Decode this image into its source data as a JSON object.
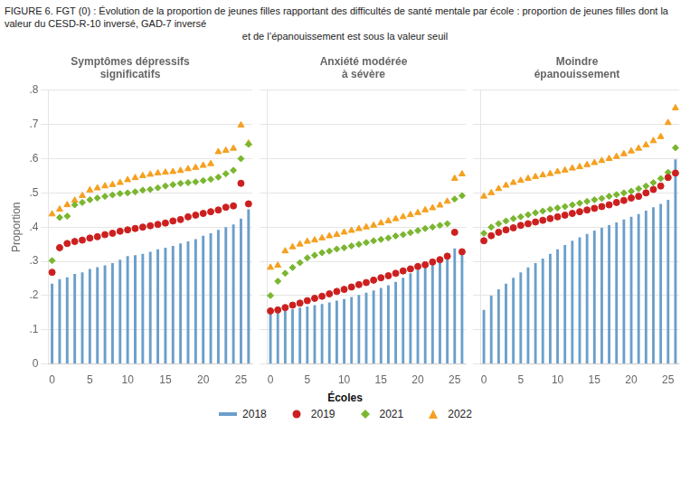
{
  "title": "FIGURE 6. FGT (0) : Évolution de la proportion de jeunes filles rapportant des difficultés de santé mentale par école : proportion de jeunes filles dont la valeur du CESD-R-10 inversé, GAD-7 inversé\net de l’épanouissement est sous la valeur seuil",
  "xlabel": "Écoles",
  "legend": "bottom",
  "chart_data": [
    {
      "type": "bar",
      "title": "Symptômes dépressifs\nsignificatifs",
      "ylabel": "Proportion",
      "categories": [
        "0",
        null,
        null,
        null,
        null,
        "5",
        null,
        null,
        null,
        null,
        "10",
        null,
        null,
        null,
        null,
        "15",
        null,
        null,
        null,
        null,
        "20",
        null,
        null,
        null,
        null,
        "25",
        null
      ],
      "ylim": [
        0,
        0.8
      ],
      "yticks": [
        0,
        {
          "value": 0.1,
          "label": ".1"
        },
        {
          "value": 0.2,
          "label": ".2"
        },
        {
          "value": 0.3,
          "label": ".3"
        },
        {
          "value": 0.4,
          "label": ".4"
        },
        {
          "value": 0.5,
          "label": ".5"
        },
        {
          "value": 0.6,
          "label": ".6"
        },
        {
          "value": 0.7,
          "label": ".7"
        },
        {
          "value": 0.8,
          "label": ".8"
        }
      ],
      "grid": true,
      "series": [
        {
          "name": "2018",
          "type": "bar",
          "color": "#6b9fcb",
          "values": [
            0.235,
            0.248,
            0.253,
            0.263,
            0.268,
            0.278,
            0.283,
            0.288,
            0.295,
            0.305,
            0.315,
            0.318,
            0.322,
            0.328,
            0.335,
            0.34,
            0.345,
            0.352,
            0.358,
            0.365,
            0.375,
            0.382,
            0.392,
            0.4,
            0.408,
            0.425,
            0.452
          ]
        },
        {
          "name": "2019",
          "type": "scatter",
          "marker": "circle",
          "color": "#cc2020",
          "values": [
            0.268,
            0.34,
            0.352,
            0.358,
            0.362,
            0.368,
            0.372,
            0.378,
            0.382,
            0.388,
            0.392,
            0.396,
            0.4,
            0.404,
            0.408,
            0.412,
            0.418,
            0.422,
            0.43,
            0.435,
            0.44,
            0.445,
            0.45,
            0.458,
            0.462,
            0.528,
            0.468
          ]
        },
        {
          "name": "2021",
          "type": "scatter",
          "marker": "diamond",
          "color": "#7ab630",
          "values": [
            0.302,
            0.428,
            0.432,
            0.465,
            0.472,
            0.48,
            0.485,
            0.49,
            0.494,
            0.498,
            0.5,
            0.503,
            0.508,
            0.51,
            0.515,
            0.52,
            0.524,
            0.528,
            0.53,
            0.532,
            0.536,
            0.54,
            0.546,
            0.556,
            0.566,
            0.6,
            0.642
          ]
        },
        {
          "name": "2022",
          "type": "scatter",
          "marker": "triangle",
          "color": "#f5a020",
          "values": [
            0.438,
            0.452,
            0.465,
            0.478,
            0.492,
            0.508,
            0.514,
            0.52,
            0.524,
            0.53,
            0.538,
            0.544,
            0.55,
            0.554,
            0.558,
            0.56,
            0.562,
            0.565,
            0.57,
            0.574,
            0.58,
            0.585,
            0.62,
            0.624,
            0.63,
            0.698,
            0.645
          ]
        }
      ]
    },
    {
      "type": "bar",
      "title": "Anxiété modérée\nà sévère",
      "categories": [
        "0",
        null,
        null,
        null,
        null,
        "5",
        null,
        null,
        null,
        null,
        "10",
        null,
        null,
        null,
        null,
        "15",
        null,
        null,
        null,
        null,
        "20",
        null,
        null,
        null,
        null,
        "25",
        null
      ],
      "ylim": [
        0,
        0.8
      ],
      "yticks": [
        0,
        {
          "value": 0.1,
          "label": ".1"
        },
        {
          "value": 0.2,
          "label": ".2"
        },
        {
          "value": 0.3,
          "label": ".3"
        },
        {
          "value": 0.4,
          "label": ".4"
        },
        {
          "value": 0.5,
          "label": ".5"
        },
        {
          "value": 0.6,
          "label": ".6"
        },
        {
          "value": 0.7,
          "label": ".7"
        },
        {
          "value": 0.8,
          "label": ".8"
        }
      ],
      "grid": true,
      "tick_labels": "x",
      "series": [
        {
          "name": "2018",
          "type": "bar",
          "color": "#6b9fcb",
          "values": [
            0.148,
            0.152,
            0.156,
            0.16,
            0.165,
            0.168,
            0.172,
            0.175,
            0.18,
            0.185,
            0.19,
            0.196,
            0.202,
            0.208,
            0.215,
            0.222,
            0.23,
            0.24,
            0.252,
            0.265,
            0.275,
            0.285,
            0.298,
            0.308,
            0.322,
            0.338,
            0.332
          ]
        },
        {
          "name": "2019",
          "type": "scatter",
          "marker": "circle",
          "color": "#cc2020",
          "values": [
            0.155,
            0.158,
            0.165,
            0.172,
            0.178,
            0.185,
            0.192,
            0.198,
            0.205,
            0.212,
            0.218,
            0.225,
            0.232,
            0.238,
            0.245,
            0.252,
            0.258,
            0.265,
            0.272,
            0.278,
            0.285,
            0.29,
            0.298,
            0.305,
            0.315,
            0.385,
            0.328
          ]
        },
        {
          "name": "2021",
          "type": "scatter",
          "marker": "diamond",
          "color": "#7ab630",
          "values": [
            0.2,
            0.242,
            0.265,
            0.282,
            0.296,
            0.31,
            0.318,
            0.325,
            0.33,
            0.336,
            0.34,
            0.345,
            0.35,
            0.355,
            0.36,
            0.364,
            0.368,
            0.374,
            0.378,
            0.384,
            0.39,
            0.396,
            0.4,
            0.405,
            0.41,
            0.482,
            0.492
          ]
        },
        {
          "name": "2022",
          "type": "scatter",
          "marker": "triangle",
          "color": "#f5a020",
          "values": [
            0.282,
            0.288,
            0.33,
            0.342,
            0.35,
            0.358,
            0.362,
            0.368,
            0.374,
            0.378,
            0.385,
            0.39,
            0.395,
            0.4,
            0.405,
            0.412,
            0.418,
            0.424,
            0.43,
            0.436,
            0.442,
            0.45,
            0.456,
            0.464,
            0.475,
            0.542,
            0.555
          ]
        }
      ]
    },
    {
      "type": "bar",
      "title": "Moindre\népanouissement",
      "categories": [
        "0",
        null,
        null,
        null,
        null,
        "5",
        null,
        null,
        null,
        null,
        "10",
        null,
        null,
        null,
        null,
        "15",
        null,
        null,
        null,
        null,
        "20",
        null,
        null,
        null,
        null,
        "25",
        null
      ],
      "ylim": [
        0,
        0.8
      ],
      "yticks": [
        0,
        {
          "value": 0.1,
          "label": ".1"
        },
        {
          "value": 0.2,
          "label": ".2"
        },
        {
          "value": 0.3,
          "label": ".3"
        },
        {
          "value": 0.4,
          "label": ".4"
        },
        {
          "value": 0.5,
          "label": ".5"
        },
        {
          "value": 0.6,
          "label": ".6"
        },
        {
          "value": 0.7,
          "label": ".7"
        },
        {
          "value": 0.8,
          "label": ".8"
        }
      ],
      "grid": true,
      "tick_labels": "x",
      "series": [
        {
          "name": "2018",
          "type": "bar",
          "color": "#6b9fcb",
          "values": [
            0.158,
            0.2,
            0.218,
            0.235,
            0.252,
            0.268,
            0.282,
            0.295,
            0.308,
            0.322,
            0.335,
            0.348,
            0.36,
            0.37,
            0.38,
            0.39,
            0.398,
            0.406,
            0.414,
            0.422,
            0.43,
            0.438,
            0.448,
            0.458,
            0.468,
            0.48,
            0.598
          ]
        },
        {
          "name": "2019",
          "type": "scatter",
          "marker": "circle",
          "color": "#cc2020",
          "values": [
            0.36,
            0.375,
            0.385,
            0.392,
            0.398,
            0.405,
            0.41,
            0.415,
            0.42,
            0.425,
            0.43,
            0.435,
            0.44,
            0.445,
            0.45,
            0.455,
            0.46,
            0.465,
            0.472,
            0.478,
            0.485,
            0.49,
            0.5,
            0.51,
            0.52,
            0.545,
            0.558
          ]
        },
        {
          "name": "2021",
          "type": "scatter",
          "marker": "diamond",
          "color": "#7ab630",
          "values": [
            0.382,
            0.4,
            0.41,
            0.418,
            0.425,
            0.43,
            0.436,
            0.442,
            0.447,
            0.452,
            0.456,
            0.46,
            0.465,
            0.47,
            0.475,
            0.48,
            0.484,
            0.49,
            0.495,
            0.5,
            0.505,
            0.512,
            0.52,
            0.53,
            0.542,
            0.56,
            0.632
          ]
        },
        {
          "name": "2022",
          "type": "scatter",
          "marker": "triangle",
          "color": "#f5a020",
          "values": [
            0.49,
            0.5,
            0.512,
            0.522,
            0.53,
            0.536,
            0.542,
            0.547,
            0.552,
            0.556,
            0.562,
            0.566,
            0.572,
            0.576,
            0.582,
            0.588,
            0.594,
            0.6,
            0.606,
            0.614,
            0.622,
            0.63,
            0.64,
            0.652,
            0.664,
            0.705,
            0.748
          ]
        }
      ]
    }
  ]
}
